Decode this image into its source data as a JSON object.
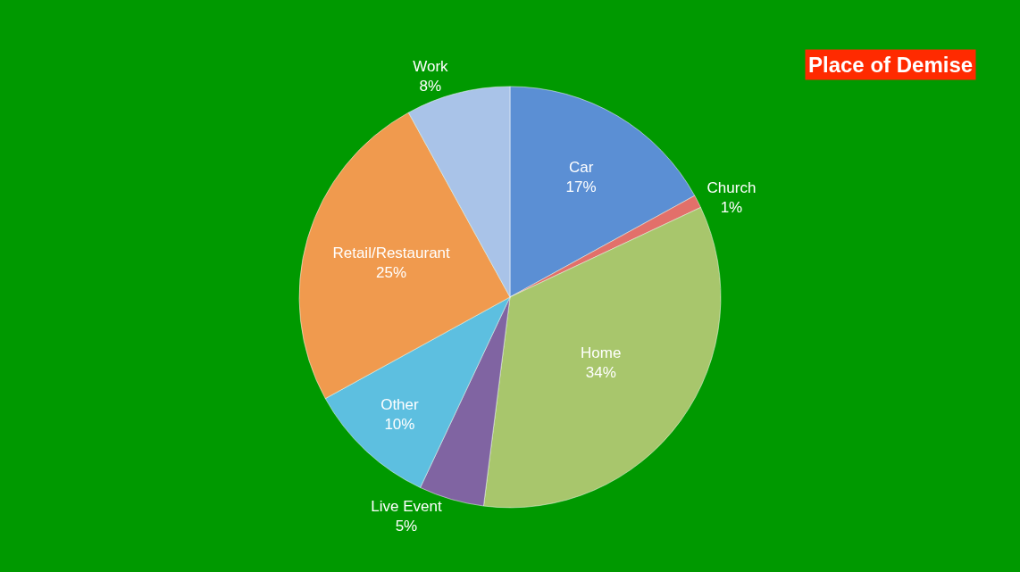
{
  "chart_data": {
    "type": "pie",
    "title": "Place of Demise",
    "categories": [
      "Car",
      "Church",
      "Home",
      "Live Event",
      "Other",
      "Retail/Restaurant",
      "Work"
    ],
    "values": [
      17,
      1,
      34,
      5,
      10,
      25,
      8
    ],
    "value_labels": [
      "17%",
      "1%",
      "34%",
      "5%",
      "10%",
      "25%",
      "8%"
    ],
    "colors": [
      "#5b8fd4",
      "#e2706a",
      "#a8c66c",
      "#8064a2",
      "#5dbfe0",
      "#f09a4e",
      "#a9c3e8"
    ]
  }
}
